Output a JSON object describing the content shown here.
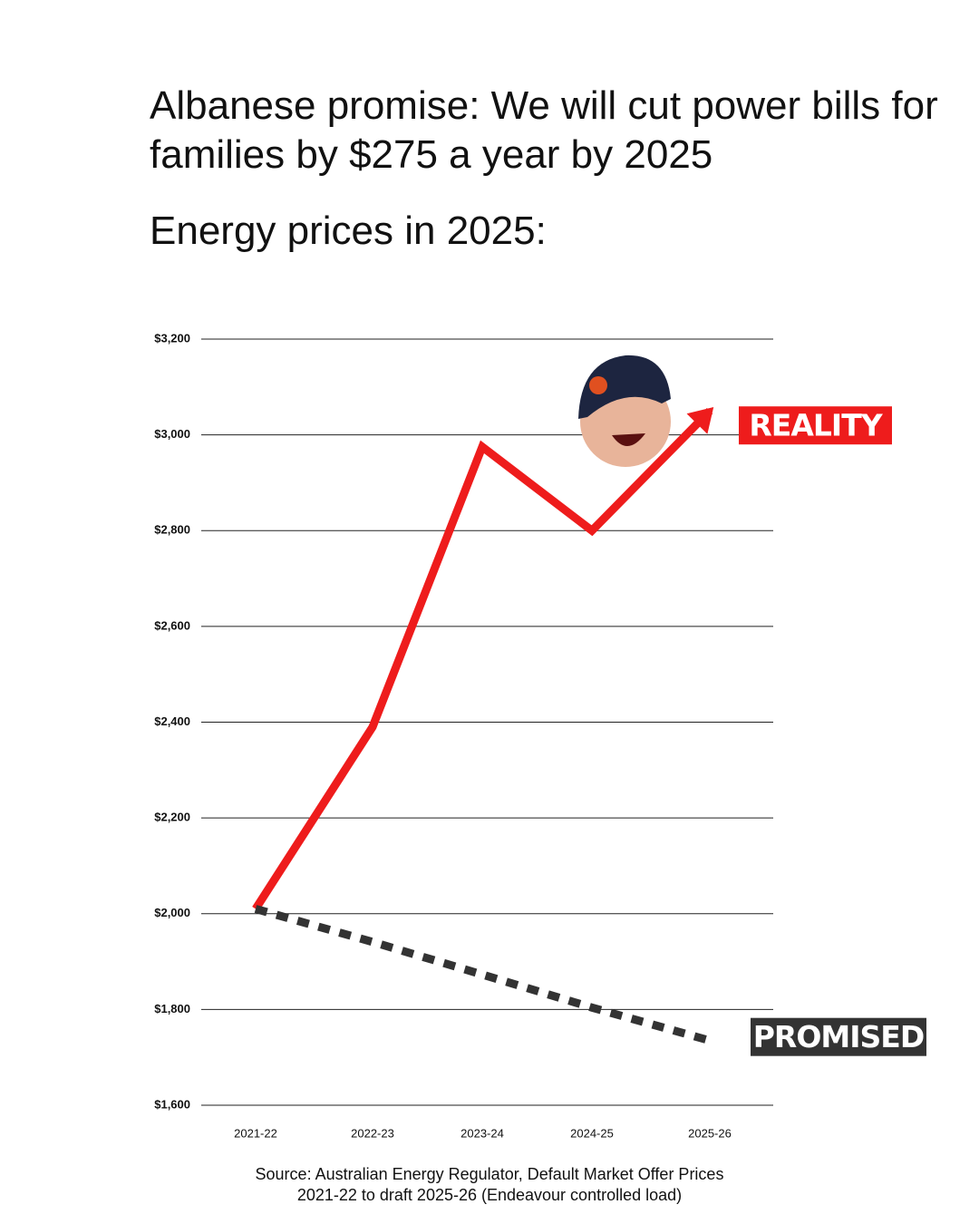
{
  "chart_data": {
    "type": "line",
    "title": "Albanese promise: We will cut power bills for families by $275 a year by 2025",
    "subtitle": "Energy prices in 2025:",
    "categories": [
      "2021-22",
      "2022-23",
      "2023-24",
      "2024-25",
      "2025-26"
    ],
    "series": [
      {
        "name": "REALITY",
        "color": "#ee1c1c",
        "values": [
          2010,
          2390,
          2975,
          2800,
          3050
        ]
      },
      {
        "name": "PROMISED",
        "color": "#333333",
        "values": [
          2010,
          1941,
          1873,
          1804,
          1735
        ]
      }
    ],
    "ylim": [
      1600,
      3200
    ],
    "yticks": [
      {
        "value": 1600,
        "label": "$1,600"
      },
      {
        "value": 1800,
        "label": "$1,800"
      },
      {
        "value": 2000,
        "label": "$2,000"
      },
      {
        "value": 2200,
        "label": "$2,200"
      },
      {
        "value": 2400,
        "label": "$2,400"
      },
      {
        "value": 2600,
        "label": "$2,600"
      },
      {
        "value": 2800,
        "label": "$2,800"
      },
      {
        "value": 3000,
        "label": "$3,000"
      },
      {
        "value": 3200,
        "label": "$3,200"
      }
    ],
    "grid": true,
    "source": [
      "Source: Australian Energy Regulator, Default Market Offer Prices",
      "2021-22 to draft 2025-26 (Endeavour controlled load)"
    ]
  }
}
